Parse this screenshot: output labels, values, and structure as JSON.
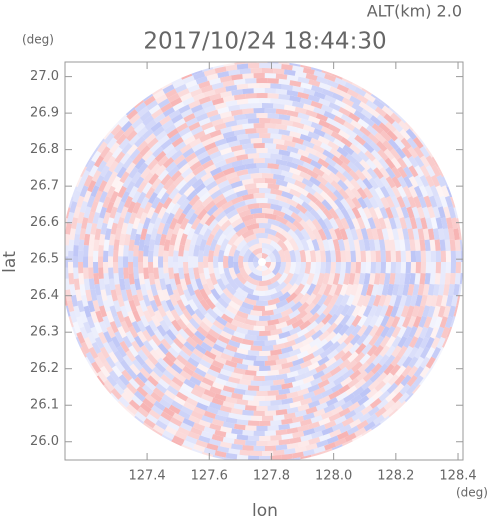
{
  "chart_data": {
    "type": "radar-image",
    "title": "2017/10/24 18:44:30",
    "subtitle": "ALT(km) 2.0",
    "x_label": "lon",
    "y_label": "lat",
    "x_unit": "(deg)",
    "y_unit": "(deg)",
    "xlim": [
      127.136,
      128.416
    ],
    "ylim": [
      25.95,
      27.04
    ],
    "xticks": [
      127.4,
      127.6,
      127.8,
      {
        "value": 128,
        "label": "128.0"
      },
      128.2,
      128.4
    ],
    "yticks": [
      {
        "value": 26,
        "label": "26.0"
      },
      26.1,
      26.2,
      26.3,
      26.4,
      26.5,
      26.6,
      26.7,
      26.8,
      26.9,
      {
        "value": 27,
        "label": "27.0"
      }
    ],
    "colors": [
      "#f7b3b3",
      "#bcc4f6"
    ]
  }
}
